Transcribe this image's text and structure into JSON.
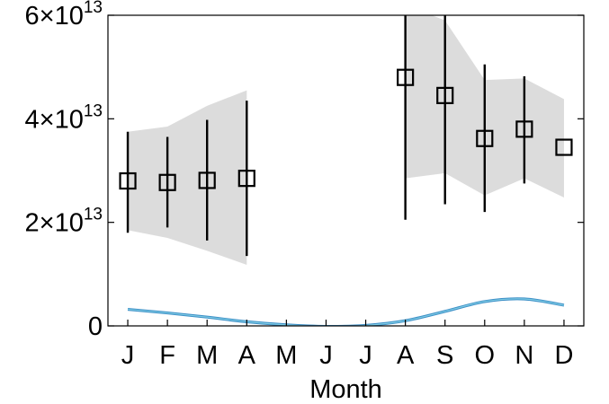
{
  "chart_data": {
    "type": "line",
    "xlabel": "Month",
    "categories": [
      "J",
      "F",
      "M",
      "A",
      "M",
      "J",
      "J",
      "A",
      "S",
      "O",
      "N",
      "D"
    ],
    "ylim": [
      0,
      60000000000000.0
    ],
    "y_ticks": [
      {
        "value": 0,
        "mantissa": "0",
        "exponent": ""
      },
      {
        "value": 20000000000000.0,
        "mantissa": "2×10",
        "exponent": "13"
      },
      {
        "value": 40000000000000.0,
        "mantissa": "4×10",
        "exponent": "13"
      },
      {
        "value": 60000000000000.0,
        "mantissa": "6×10",
        "exponent": "13"
      }
    ],
    "grid": false,
    "observed": {
      "marker": "square",
      "values": [
        28000000000000.0,
        27700000000000.0,
        28100000000000.0,
        28500000000000.0,
        null,
        null,
        null,
        48000000000000.0,
        44500000000000.0,
        36200000000000.0,
        38000000000000.0,
        34500000000000.0
      ],
      "err_low": [
        18000000000000.0,
        19000000000000.0,
        16500000000000.0,
        13500000000000.0,
        null,
        null,
        null,
        20500000000000.0,
        23500000000000.0,
        22000000000000.0,
        27500000000000.0,
        null
      ],
      "err_high": [
        37500000000000.0,
        36500000000000.0,
        39800000000000.0,
        43500000000000.0,
        null,
        null,
        null,
        60000000000000.0,
        60000000000000.0,
        50500000000000.0,
        48200000000000.0,
        null
      ]
    },
    "shaded_band": {
      "color": "#dcdcdc",
      "segments": [
        {
          "months": [
            0,
            1,
            2,
            3
          ],
          "low": [
            18500000000000.0,
            17000000000000.0,
            14500000000000.0,
            11800000000000.0
          ],
          "high": [
            37500000000000.0,
            38500000000000.0,
            42500000000000.0,
            45500000000000.0
          ]
        },
        {
          "months": [
            7,
            8,
            9,
            10,
            11
          ],
          "low": [
            28500000000000.0,
            29500000000000.0,
            25200000000000.0,
            28500000000000.0,
            24800000000000.0
          ],
          "high": [
            62000000000000.0,
            59000000000000.0,
            47500000000000.0,
            47800000000000.0,
            43800000000000.0
          ]
        }
      ]
    },
    "model_line": {
      "color": "#3d8fc7",
      "highlight": "#7ecbe3",
      "values": [
        3200000000000.0,
        2500000000000.0,
        1700000000000.0,
        800000000000.0,
        200000000000.0,
        -100000000000.0,
        100000000000.0,
        1000000000000.0,
        2800000000000.0,
        4700000000000.0,
        5200000000000.0,
        4000000000000.0
      ]
    }
  }
}
